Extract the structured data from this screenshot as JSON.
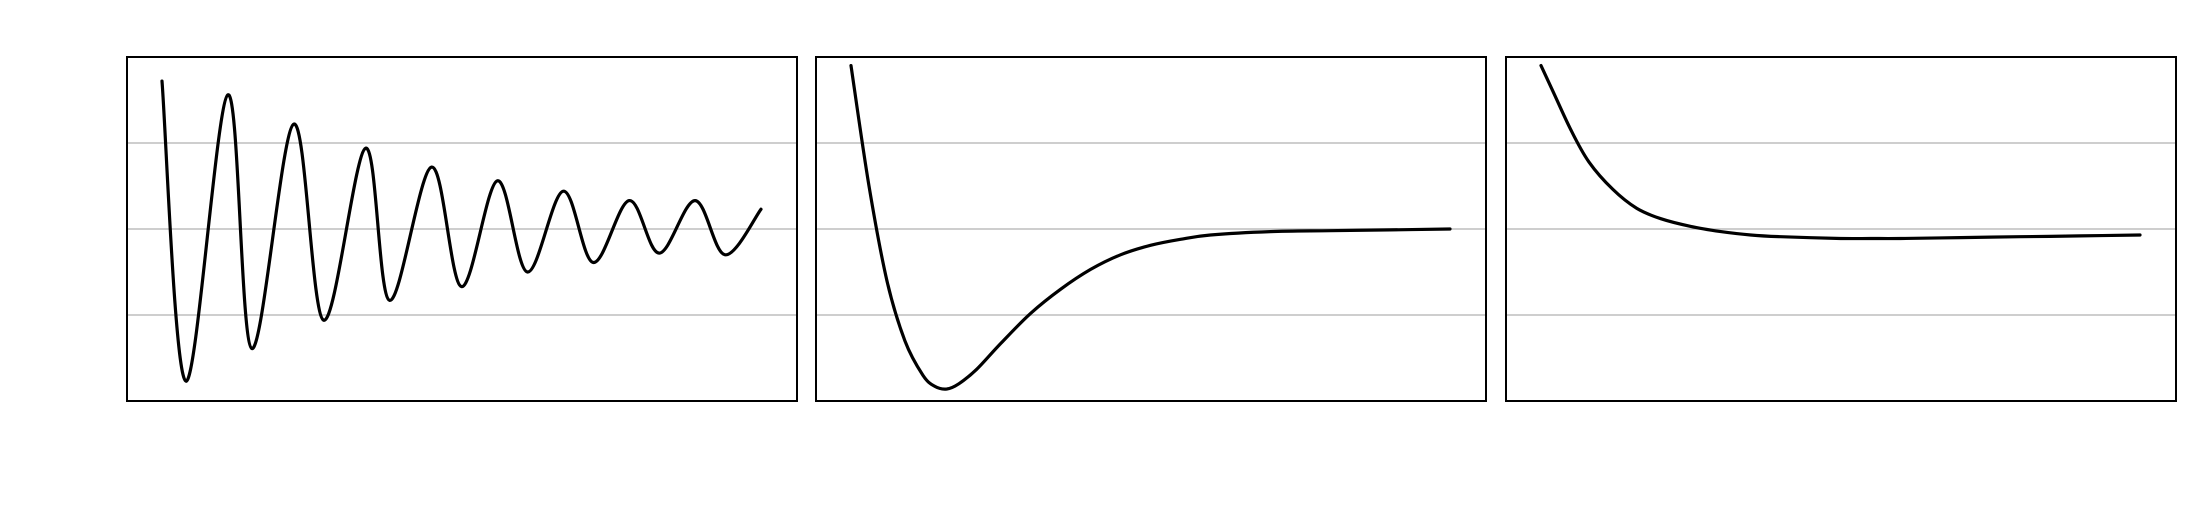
{
  "chart_data": [
    {
      "type": "line",
      "title": "",
      "xlabel": "",
      "ylabel": "",
      "grid": true,
      "xlim": [
        0,
        1
      ],
      "ylim": [
        -2,
        2
      ],
      "y_gridlines": [
        -1,
        0,
        1
      ],
      "series": [
        {
          "line_color": "#000000",
          "x": [
            0.0,
            0.04,
            0.11,
            0.15,
            0.22,
            0.27,
            0.34,
            0.38,
            0.45,
            0.5,
            0.56,
            0.61,
            0.67,
            0.72,
            0.78,
            0.83,
            0.89,
            0.94,
            1.0
          ],
          "y": [
            1.72,
            -1.77,
            1.56,
            -1.39,
            1.22,
            -1.06,
            0.94,
            -0.83,
            0.72,
            -0.67,
            0.56,
            -0.5,
            0.44,
            -0.39,
            0.33,
            -0.28,
            0.33,
            -0.3,
            0.23
          ]
        }
      ]
    },
    {
      "type": "line",
      "title": "",
      "xlabel": "",
      "ylabel": "",
      "grid": true,
      "xlim": [
        0,
        1
      ],
      "ylim": [
        -2,
        2
      ],
      "y_gridlines": [
        -1,
        0,
        1
      ],
      "series": [
        {
          "line_color": "#000000",
          "x": [
            0.0,
            0.03,
            0.06,
            0.09,
            0.12,
            0.14,
            0.16,
            0.18,
            0.21,
            0.25,
            0.3,
            0.35,
            0.4,
            0.45,
            0.5,
            0.55,
            0.6,
            0.7,
            0.8,
            0.9,
            1.0
          ],
          "y": [
            1.9,
            0.5,
            -0.6,
            -1.3,
            -1.7,
            -1.83,
            -1.86,
            -1.8,
            -1.63,
            -1.33,
            -0.98,
            -0.7,
            -0.47,
            -0.3,
            -0.19,
            -0.12,
            -0.07,
            -0.03,
            -0.02,
            -0.01,
            0.0
          ]
        }
      ]
    },
    {
      "type": "line",
      "title": "",
      "xlabel": "",
      "ylabel": "",
      "grid": true,
      "xlim": [
        0,
        1
      ],
      "ylim": [
        -2,
        2
      ],
      "y_gridlines": [
        -1,
        0,
        1
      ],
      "series": [
        {
          "line_color": "#000000",
          "x": [
            0.0,
            0.02,
            0.05,
            0.08,
            0.12,
            0.16,
            0.2,
            0.25,
            0.3,
            0.35,
            0.4,
            0.5,
            0.55,
            0.6,
            0.7,
            0.8,
            0.9,
            1.0
          ],
          "y": [
            1.9,
            1.6,
            1.15,
            0.78,
            0.46,
            0.24,
            0.12,
            0.03,
            -0.03,
            -0.07,
            -0.09,
            -0.11,
            -0.11,
            -0.11,
            -0.1,
            -0.09,
            -0.08,
            -0.07
          ]
        }
      ]
    }
  ]
}
